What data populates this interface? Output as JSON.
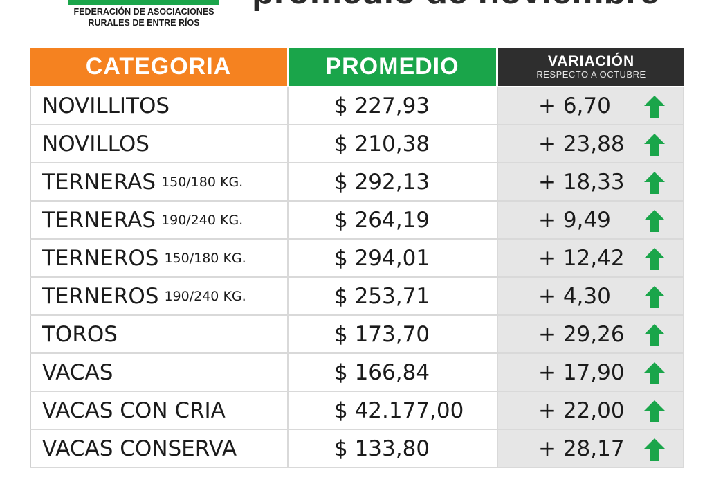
{
  "header": {
    "org_line1": "FEDERACIÓN DE ASOCIACIONES",
    "org_line2": "RURALES DE ENTRE RÍOS",
    "headline": "promedio de noviembre"
  },
  "table": {
    "col_categoria": "CATEGORIA",
    "col_promedio": "PROMEDIO",
    "col_variacion": "VARIACIÓN",
    "col_variacion_sub": "RESPECTO A OCTUBRE",
    "rows": [
      {
        "categoria": "NOVILLITOS",
        "detalle": "",
        "promedio": "$ 227,93",
        "variacion": "+ 6,70"
      },
      {
        "categoria": "NOVILLOS",
        "detalle": "",
        "promedio": "$ 210,38",
        "variacion": "+ 23,88"
      },
      {
        "categoria": "TERNERAS",
        "detalle": "150/180 KG.",
        "promedio": "$ 292,13",
        "variacion": "+ 18,33"
      },
      {
        "categoria": "TERNERAS",
        "detalle": "190/240 KG.",
        "promedio": "$ 264,19",
        "variacion": "+ 9,49"
      },
      {
        "categoria": "TERNEROS",
        "detalle": "150/180 KG.",
        "promedio": "$ 294,01",
        "variacion": "+ 12,42"
      },
      {
        "categoria": "TERNEROS",
        "detalle": "190/240 KG.",
        "promedio": "$ 253,71",
        "variacion": "+ 4,30"
      },
      {
        "categoria": "TOROS",
        "detalle": "",
        "promedio": "$ 173,70",
        "variacion": "+ 29,26"
      },
      {
        "categoria": "VACAS",
        "detalle": "",
        "promedio": "$ 166,84",
        "variacion": "+ 17,90"
      },
      {
        "categoria": "VACAS CON CRIA",
        "detalle": "",
        "promedio": "$ 42.177,00",
        "variacion": "+ 22,00"
      },
      {
        "categoria": "VACAS CONSERVA",
        "detalle": "",
        "promedio": "$ 133,80",
        "variacion": "+ 28,17"
      }
    ]
  },
  "icons": {
    "trend": "arrow-up-icon"
  },
  "colors": {
    "categoria_header": "#f58220",
    "promedio_header": "#1aa54a",
    "variacion_header": "#2e2e2e",
    "arrow": "#1aa54a"
  }
}
